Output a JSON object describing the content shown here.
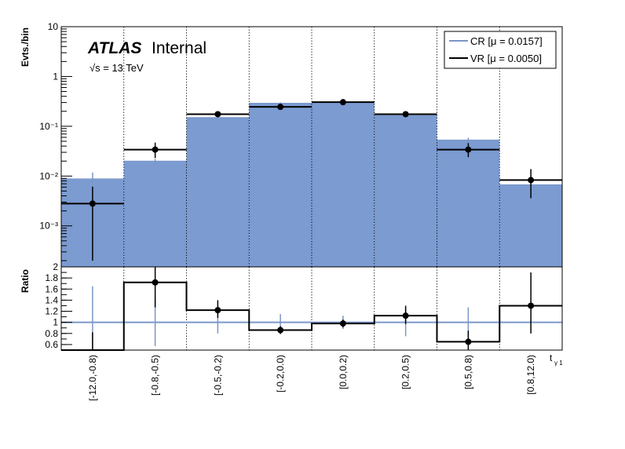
{
  "atlas_label": "ATLAS",
  "atlas_status": "Internal",
  "energy_label": "√s = 13 TeV",
  "chart_data": {
    "type": "bar",
    "categories": [
      "[-12.0,-0.8)",
      "[-0.8,-0.5)",
      "[-0.5,-0.2)",
      "[-0.2,0.0)",
      "[0.0,0.2)",
      "[0.2,0.5)",
      "[0.5,0.8)",
      "[0.8,12.0)"
    ],
    "ylabel": "Evts./bin",
    "xlabel": "t",
    "xlabel_sub": "γ 1",
    "yscale": "log",
    "ylim": [
      0.00015,
      10
    ],
    "y_ticks": [
      {
        "value": 10,
        "label": "10"
      },
      {
        "value": 1,
        "label": "1"
      },
      {
        "value": 0.1,
        "label": "10⁻¹"
      },
      {
        "value": 0.01,
        "label": "10⁻²"
      },
      {
        "value": 0.001,
        "label": "10⁻³"
      }
    ],
    "legend_position": "top-right",
    "grid": "vertical dotted at bin edges",
    "series": [
      {
        "name": "CR [μ = 0.0157]",
        "style": "filled histogram",
        "color": "#7b9bd1",
        "line_color": "#7a96c9",
        "values": [
          0.0088,
          0.02,
          0.15,
          0.29,
          0.31,
          0.165,
          0.053,
          0.0067
        ],
        "errors": [
          0.003,
          0.002,
          0.008,
          0.012,
          0.012,
          0.008,
          0.006,
          0.0015
        ]
      },
      {
        "name": "VR [μ = 0.0050]",
        "style": "points with error bars",
        "color": "#000000",
        "values": [
          0.0028,
          0.034,
          0.175,
          0.245,
          0.305,
          0.175,
          0.034,
          0.0083
        ],
        "err_low": [
          0.0026,
          0.011,
          0.02,
          0.03,
          0.03,
          0.02,
          0.01,
          0.0047
        ],
        "err_high": [
          0.0033,
          0.013,
          0.022,
          0.032,
          0.032,
          0.022,
          0.012,
          0.0055
        ]
      }
    ],
    "ratio_panel": {
      "ylabel": "Ratio",
      "ylim": [
        0.5,
        2.0
      ],
      "y_ticks": [
        {
          "value": 2,
          "label": "2"
        },
        {
          "value": 1.8,
          "label": "1.8"
        },
        {
          "value": 1.6,
          "label": "1.6"
        },
        {
          "value": 1.4,
          "label": "1.4"
        },
        {
          "value": 1.2,
          "label": "1.2"
        },
        {
          "value": 1,
          "label": "1"
        },
        {
          "value": 0.8,
          "label": "0.8"
        },
        {
          "value": 0.6,
          "label": "0.6"
        }
      ],
      "reference_line": 1,
      "reference_color": "#7a96c9",
      "cr_relative_errors": [
        0.65,
        0.43,
        0.2,
        0.15,
        0.12,
        0.25,
        0.27,
        0.0
      ],
      "values": [
        0.32,
        1.72,
        1.22,
        0.86,
        0.98,
        1.12,
        0.65,
        1.3
      ],
      "err_low": [
        0.3,
        0.45,
        0.14,
        0.07,
        0.07,
        0.15,
        0.18,
        0.5
      ],
      "err_high": [
        0.5,
        0.5,
        0.18,
        0.07,
        0.07,
        0.18,
        0.2,
        0.6
      ]
    }
  }
}
